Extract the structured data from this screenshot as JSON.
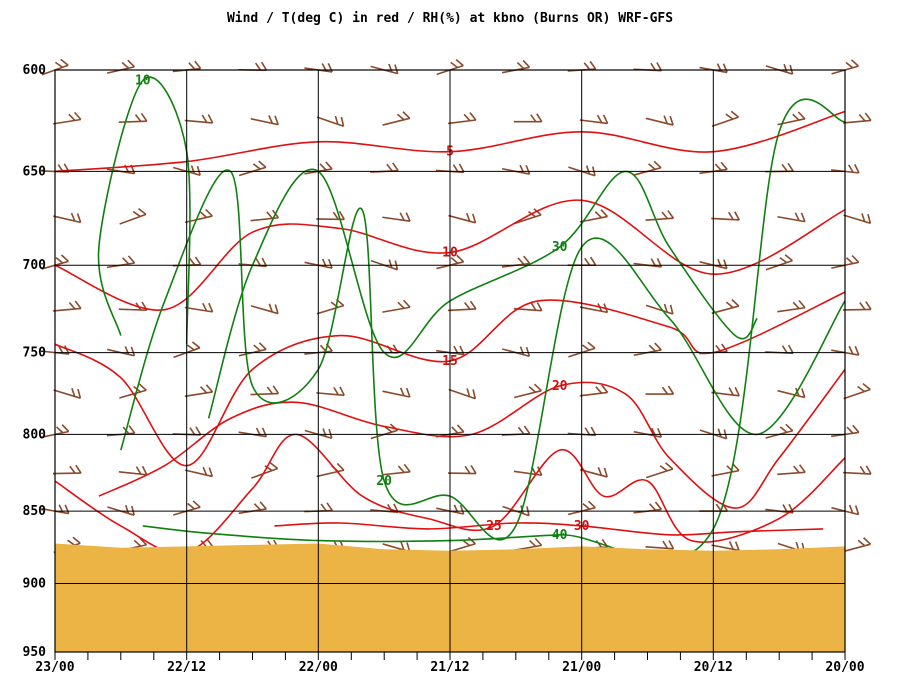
{
  "colors": {
    "temperature": "#e01010",
    "rh": "#108010",
    "wind": "#8b4a2a",
    "terrain": "#ebb444",
    "grid": "#000000"
  },
  "chart_data": {
    "type": "line",
    "title": "Wind / T(deg C) in red / RH(%) at kbno (Burns OR)  WRF-GFS",
    "x_axis": {
      "tick_labels": [
        "23/00",
        "22/12",
        "22/00",
        "21/12",
        "21/00",
        "20/12",
        "20/00"
      ],
      "range_hours": [
        0,
        72
      ],
      "direction": "time decreases to the right"
    },
    "y_axis": {
      "quantity": "pressure (mb)",
      "tick_labels": [
        "600",
        "650",
        "700",
        "750",
        "800",
        "850",
        "900",
        "950"
      ],
      "ylim": [
        600,
        950
      ],
      "scale": "log-pressure",
      "inverted": true
    },
    "grid": true,
    "terrain": {
      "surface_pressure": [
        [
          0,
          872
        ],
        [
          6,
          875
        ],
        [
          12,
          874
        ],
        [
          18,
          873
        ],
        [
          24,
          872
        ],
        [
          30,
          876
        ],
        [
          36,
          877
        ],
        [
          42,
          876
        ],
        [
          48,
          874
        ],
        [
          54,
          876
        ],
        [
          60,
          877
        ],
        [
          66,
          876
        ],
        [
          72,
          874
        ]
      ]
    },
    "series": [
      {
        "name": "T(deg C)",
        "kind": "temperature isotherms",
        "contours": [
          {
            "label": "5",
            "points": [
              [
                0,
                650
              ],
              [
                12,
                645
              ],
              [
                24,
                635
              ],
              [
                36,
                640
              ],
              [
                48,
                630
              ],
              [
                60,
                640
              ],
              [
                72,
                620
              ]
            ]
          },
          {
            "label": "10",
            "points": [
              [
                0,
                700
              ],
              [
                10,
                725
              ],
              [
                18,
                682
              ],
              [
                26,
                680
              ],
              [
                36,
                693
              ],
              [
                48,
                665
              ],
              [
                60,
                705
              ],
              [
                72,
                670
              ]
            ]
          },
          {
            "label": "15",
            "points": [
              [
                0,
                745
              ],
              [
                6,
                765
              ],
              [
                12,
                820
              ],
              [
                18,
                760
              ],
              [
                26,
                740
              ],
              [
                36,
                755
              ],
              [
                44,
                720
              ],
              [
                56,
                735
              ],
              [
                60,
                750
              ],
              [
                72,
                715
              ]
            ]
          },
          {
            "label": "20",
            "points": [
              [
                4,
                840
              ],
              [
                10,
                820
              ],
              [
                16,
                790
              ],
              [
                22,
                780
              ],
              [
                30,
                795
              ],
              [
                38,
                800
              ],
              [
                46,
                770
              ],
              [
                52,
                775
              ],
              [
                56,
                815
              ],
              [
                62,
                848
              ],
              [
                66,
                815
              ],
              [
                72,
                760
              ]
            ]
          },
          {
            "label": "25",
            "points": [
              [
                0,
                830
              ],
              [
                6,
                860
              ],
              [
                12,
                878
              ],
              [
                18,
                835
              ],
              [
                22,
                800
              ],
              [
                28,
                840
              ],
              [
                34,
                855
              ],
              [
                40,
                860
              ],
              [
                46,
                810
              ],
              [
                50,
                840
              ],
              [
                54,
                830
              ],
              [
                58,
                870
              ],
              [
                66,
                855
              ],
              [
                72,
                815
              ]
            ]
          },
          {
            "label": "30",
            "points": [
              [
                20,
                860
              ],
              [
                26,
                858
              ],
              [
                34,
                862
              ],
              [
                42,
                858
              ],
              [
                48,
                860
              ],
              [
                56,
                866
              ],
              [
                62,
                864
              ],
              [
                70,
                862
              ]
            ]
          }
        ]
      },
      {
        "name": "RH(%)",
        "kind": "relative humidity contours",
        "contours": [
          {
            "label": "10",
            "points": [
              [
                6,
                740
              ],
              [
                4,
                690
              ],
              [
                8,
                605
              ],
              [
                12,
                640
              ],
              [
                12,
                745
              ]
            ]
          },
          {
            "label": "20",
            "points": [
              [
                6,
                810
              ],
              [
                10,
                720
              ],
              [
                16,
                650
              ],
              [
                18,
                770
              ],
              [
                24,
                760
              ],
              [
                28,
                670
              ],
              [
                30,
                830
              ],
              [
                36,
                840
              ],
              [
                42,
                860
              ],
              [
                48,
                690
              ],
              [
                56,
                730
              ],
              [
                64,
                800
              ],
              [
                72,
                720
              ]
            ]
          },
          {
            "label": "30",
            "points": [
              [
                14,
                790
              ],
              [
                18,
                700
              ],
              [
                24,
                650
              ],
              [
                30,
                750
              ],
              [
                36,
                720
              ],
              [
                46,
                690
              ],
              [
                52,
                650
              ],
              [
                56,
                690
              ],
              [
                62,
                740
              ],
              [
                64,
                730
              ]
            ]
          },
          {
            "label": "40",
            "points": [
              [
                8,
                860
              ],
              [
                14,
                865
              ],
              [
                24,
                870
              ],
              [
                36,
                870
              ],
              [
                46,
                866
              ],
              [
                60,
                862
              ],
              [
                66,
                630
              ],
              [
                72,
                625
              ]
            ]
          }
        ]
      },
      {
        "name": "Wind",
        "kind": "wind barbs",
        "levels_mb": [
          600,
          625,
          650,
          675,
          700,
          725,
          750,
          775,
          800,
          825,
          850,
          875
        ],
        "times_h": [
          0,
          6,
          12,
          18,
          24,
          30,
          36,
          42,
          48,
          54,
          60,
          66,
          72
        ]
      }
    ]
  }
}
